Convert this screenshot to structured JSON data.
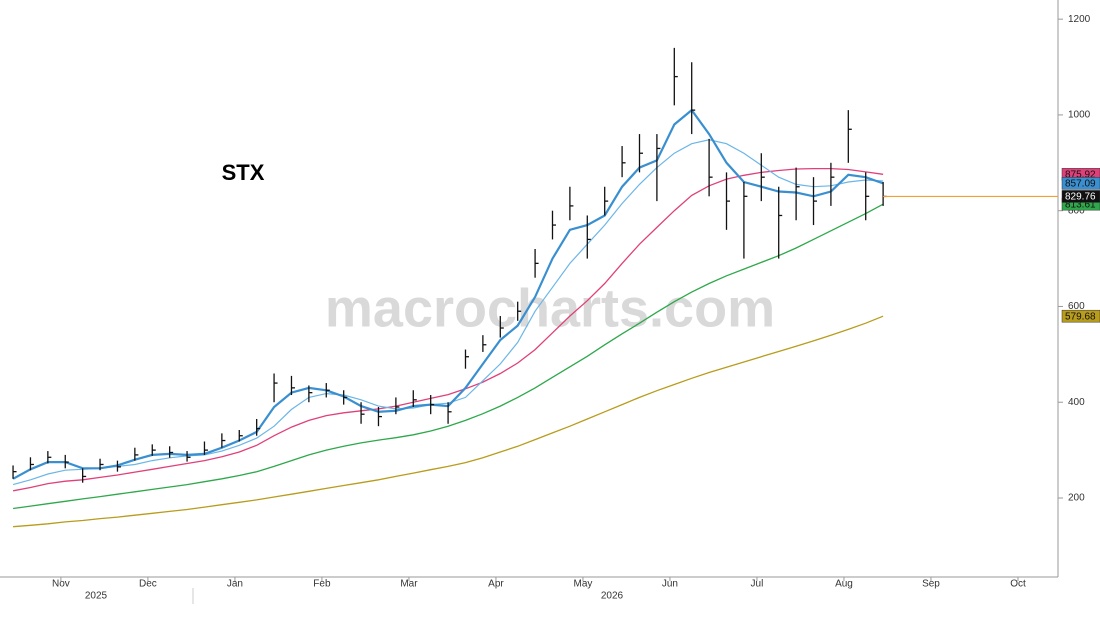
{
  "chart_data": {
    "type": "ohlc",
    "title": "STX",
    "watermark": "macrocharts.com",
    "years": [
      "2025",
      "2026"
    ],
    "x": [
      10.45,
      10.65,
      10.85,
      11.05,
      11.25,
      11.45,
      11.65,
      11.85,
      12.05,
      12.25,
      12.45,
      12.65,
      12.85,
      13.05,
      13.25,
      13.45,
      13.65,
      13.85,
      14.05,
      14.25,
      14.45,
      14.65,
      14.85,
      15.05,
      15.25,
      15.45,
      15.65,
      15.85,
      16.05,
      16.25,
      16.45,
      16.65,
      16.85,
      17.05,
      17.25,
      17.45,
      17.65,
      17.85,
      18.05,
      18.25,
      18.45,
      18.65,
      18.85,
      19.05,
      19.25,
      19.45,
      19.65,
      19.85,
      20.05,
      20.25,
      20.45
    ],
    "high": [
      268,
      285,
      298,
      290,
      262,
      282,
      278,
      305,
      312,
      308,
      298,
      318,
      335,
      342,
      365,
      460,
      455,
      435,
      440,
      425,
      400,
      390,
      410,
      425,
      415,
      400,
      510,
      540,
      580,
      610,
      720,
      800,
      850,
      790,
      850,
      935,
      960,
      960,
      1140,
      1110,
      950,
      880,
      860,
      920,
      850,
      890,
      870,
      900,
      1010,
      880,
      860
    ],
    "low": [
      240,
      258,
      272,
      262,
      232,
      258,
      255,
      278,
      288,
      284,
      276,
      290,
      305,
      318,
      330,
      400,
      415,
      400,
      410,
      395,
      355,
      350,
      375,
      390,
      375,
      355,
      470,
      505,
      535,
      570,
      660,
      740,
      780,
      700,
      790,
      870,
      880,
      820,
      1020,
      960,
      830,
      760,
      700,
      820,
      700,
      780,
      770,
      810,
      900,
      780,
      810
    ],
    "close": [
      255,
      270,
      285,
      275,
      245,
      270,
      265,
      290,
      300,
      295,
      285,
      300,
      320,
      330,
      345,
      440,
      430,
      420,
      425,
      410,
      375,
      370,
      390,
      405,
      395,
      380,
      495,
      520,
      555,
      590,
      690,
      770,
      810,
      740,
      820,
      900,
      920,
      930,
      1080,
      1010,
      870,
      820,
      830,
      870,
      790,
      850,
      820,
      870,
      970,
      830,
      829.76
    ],
    "price_color": "#111111",
    "last_line_color": "#f0a030",
    "series": [
      {
        "color": "#b89c1c",
        "width": 1.3,
        "last_label": true,
        "values": [
          140,
          143,
          146,
          150,
          153,
          157,
          160,
          164,
          168,
          172,
          176,
          181,
          186,
          191,
          196,
          202,
          208,
          214,
          220,
          226,
          232,
          238,
          245,
          252,
          259,
          266,
          274,
          284,
          296,
          308,
          322,
          336,
          350,
          365,
          380,
          395,
          410,
          424,
          437,
          450,
          462,
          473,
          484,
          495,
          506,
          517,
          528,
          540,
          552,
          565,
          579.68
        ]
      },
      {
        "color": "#2ea84a",
        "width": 1.3,
        "last_label": true,
        "values": [
          178,
          183,
          188,
          193,
          198,
          203,
          208,
          213,
          218,
          223,
          228,
          234,
          240,
          247,
          255,
          266,
          278,
          290,
          300,
          308,
          315,
          321,
          326,
          332,
          340,
          350,
          362,
          376,
          392,
          410,
          430,
          452,
          474,
          496,
          520,
          543,
          565,
          588,
          610,
          630,
          648,
          664,
          678,
          692,
          706,
          722,
          740,
          758,
          776,
          794,
          813.61
        ]
      },
      {
        "color": "#e0407a",
        "width": 1.3,
        "last_label": true,
        "values": [
          215,
          222,
          230,
          235,
          238,
          243,
          248,
          254,
          260,
          266,
          272,
          278,
          286,
          296,
          310,
          330,
          348,
          362,
          372,
          378,
          382,
          386,
          392,
          400,
          408,
          416,
          428,
          442,
          460,
          482,
          510,
          545,
          580,
          612,
          648,
          690,
          730,
          765,
          800,
          832,
          852,
          866,
          874,
          880,
          884,
          887,
          888,
          888,
          886,
          881,
          875.92
        ]
      },
      {
        "color": "#6bb6e8",
        "width": 1.2,
        "last_label": false,
        "values": [
          228,
          238,
          250,
          258,
          260,
          262,
          266,
          270,
          278,
          284,
          288,
          290,
          298,
          310,
          325,
          350,
          385,
          410,
          418,
          415,
          405,
          392,
          386,
          388,
          395,
          398,
          410,
          445,
          480,
          525,
          590,
          640,
          690,
          730,
          770,
          815,
          855,
          890,
          920,
          940,
          948,
          940,
          920,
          895,
          870,
          855,
          850,
          852,
          860,
          864,
          862
        ]
      },
      {
        "color": "#3a8fd0",
        "width": 2.2,
        "last_label": true,
        "values": [
          240,
          260,
          275,
          275,
          262,
          262,
          268,
          280,
          290,
          292,
          290,
          292,
          305,
          320,
          338,
          390,
          420,
          430,
          425,
          412,
          392,
          380,
          382,
          392,
          395,
          392,
          430,
          480,
          530,
          560,
          620,
          700,
          760,
          770,
          790,
          850,
          890,
          905,
          980,
          1010,
          960,
          900,
          860,
          850,
          840,
          838,
          830,
          840,
          875,
          870,
          857.09
        ]
      }
    ],
    "xlim": [
      10.3,
      22.46
    ],
    "xticks": [
      {
        "value": 11,
        "label": "Nov"
      },
      {
        "value": 12,
        "label": "Dec"
      },
      {
        "value": 13,
        "label": "Jan"
      },
      {
        "value": 14,
        "label": "Feb"
      },
      {
        "value": 15,
        "label": "Mar"
      },
      {
        "value": 16,
        "label": "Apr"
      },
      {
        "value": 17,
        "label": "May"
      },
      {
        "value": 18,
        "label": "Jun"
      },
      {
        "value": 19,
        "label": "Jul"
      },
      {
        "value": 20,
        "label": "Aug"
      },
      {
        "value": 21,
        "label": "Sep"
      },
      {
        "value": 22,
        "label": "Oct"
      }
    ],
    "ylim": [
      35,
      1240
    ],
    "yticks": [
      200,
      400,
      600,
      800,
      1000,
      1200
    ],
    "grid": false
  }
}
